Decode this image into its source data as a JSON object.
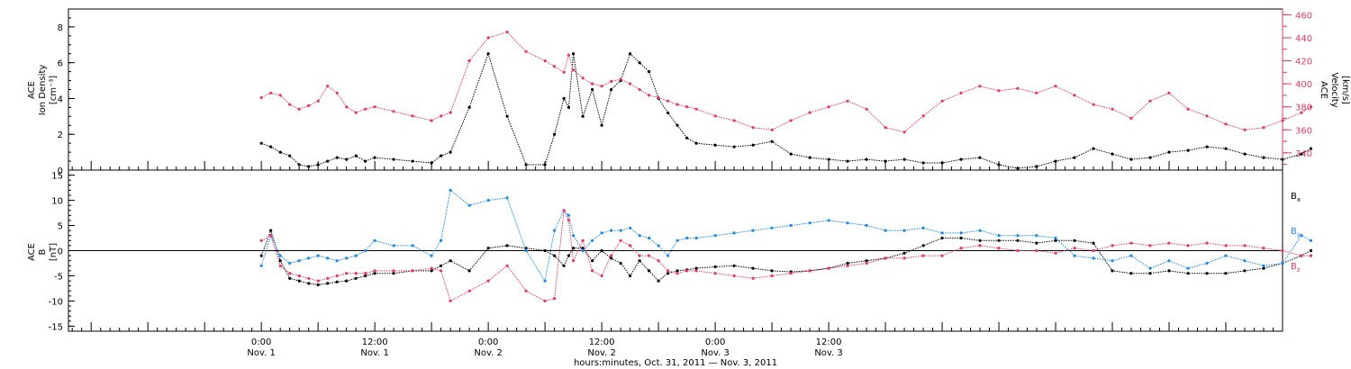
{
  "chart_data": [
    {
      "type": "scatter",
      "panel": "top",
      "ylabel_left": [
        "ACE",
        "Ion Density",
        "[cm⁻³]"
      ],
      "ylabel_right": [
        "ACE",
        "Velocity",
        "[km/s]"
      ],
      "ylim_left": [
        0,
        9
      ],
      "yticks_left": [
        0,
        2,
        4,
        6,
        8
      ],
      "ylim_right": [
        325,
        465
      ],
      "yticks_right": [
        340,
        360,
        380,
        400,
        420,
        440,
        460
      ],
      "colors": {
        "density": "#000000",
        "velocity": "#e03a66",
        "right_axis": "#e03a66"
      },
      "series": [
        {
          "axis": "left",
          "color": "#000000",
          "x": [
            0,
            1,
            2,
            3,
            4,
            5,
            6,
            7,
            8,
            9,
            10,
            11,
            12,
            14,
            16,
            18,
            19,
            20,
            22,
            24,
            26,
            28,
            30,
            31,
            32,
            32.5,
            33,
            34,
            35,
            36,
            37,
            38,
            39,
            40,
            41,
            42,
            43,
            44,
            45,
            46,
            48,
            50,
            52,
            54,
            56,
            58,
            60,
            62,
            64,
            66,
            68,
            70,
            72,
            74,
            76,
            78,
            80,
            82,
            84,
            86,
            88,
            90,
            92,
            94,
            96,
            98,
            100,
            102,
            104,
            106,
            108,
            110,
            111
          ],
          "y": [
            1.5,
            1.3,
            1.0,
            0.8,
            0.3,
            0.2,
            0.3,
            0.5,
            0.7,
            0.6,
            0.8,
            0.5,
            0.7,
            0.6,
            0.5,
            0.4,
            0.8,
            1.0,
            3.5,
            6.5,
            3.0,
            0.3,
            0.3,
            2.0,
            4.0,
            3.5,
            6.5,
            3.0,
            4.5,
            2.5,
            4.5,
            5.0,
            6.5,
            6.0,
            5.5,
            4.0,
            3.2,
            2.5,
            1.8,
            1.5,
            1.4,
            1.3,
            1.4,
            1.6,
            0.9,
            0.7,
            0.6,
            0.5,
            0.6,
            0.5,
            0.6,
            0.4,
            0.4,
            0.6,
            0.7,
            0.3,
            0.1,
            0.2,
            0.5,
            0.7,
            1.2,
            0.9,
            0.6,
            0.7,
            1.0,
            1.1,
            1.3,
            1.2,
            0.9,
            0.7,
            0.6,
            0.9,
            1.2
          ]
        },
        {
          "axis": "right",
          "color": "#e03a66",
          "x": [
            0,
            1,
            2,
            3,
            4,
            5,
            6,
            7,
            8,
            9,
            10,
            11,
            12,
            14,
            16,
            18,
            19,
            20,
            22,
            24,
            26,
            28,
            30,
            31,
            32,
            32.5,
            33,
            34,
            35,
            36,
            37,
            38,
            39,
            40,
            41,
            42,
            43,
            44,
            45,
            46,
            48,
            50,
            52,
            54,
            56,
            58,
            60,
            62,
            64,
            66,
            68,
            70,
            72,
            74,
            76,
            78,
            80,
            82,
            84,
            86,
            88,
            90,
            92,
            94,
            96,
            98,
            100,
            102,
            104,
            106,
            108,
            110,
            111
          ],
          "y": [
            388,
            392,
            390,
            382,
            378,
            381,
            385,
            398,
            392,
            380,
            375,
            378,
            380,
            376,
            372,
            368,
            372,
            375,
            420,
            440,
            445,
            428,
            420,
            415,
            410,
            425,
            412,
            405,
            400,
            398,
            402,
            404,
            400,
            395,
            390,
            388,
            385,
            382,
            380,
            378,
            372,
            368,
            362,
            360,
            368,
            375,
            380,
            385,
            378,
            362,
            358,
            372,
            385,
            392,
            398,
            394,
            396,
            392,
            398,
            390,
            382,
            378,
            370,
            385,
            392,
            378,
            372,
            365,
            360,
            362,
            368,
            375,
            380
          ]
        }
      ],
      "grid": false
    },
    {
      "type": "scatter",
      "panel": "bottom",
      "ylabel": [
        "ACE",
        "B",
        "[nT]"
      ],
      "ylim": [
        -16,
        16
      ],
      "yticks": [
        -15,
        -10,
        -5,
        0,
        5,
        10,
        15
      ],
      "legend_position": "right",
      "series": [
        {
          "name": "Bx",
          "label_main": "B",
          "label_sub": "x",
          "color": "#000000",
          "x": [
            0,
            1,
            2,
            3,
            4,
            5,
            6,
            7,
            8,
            9,
            10,
            11,
            12,
            14,
            16,
            18,
            19,
            20,
            22,
            24,
            26,
            28,
            30,
            31,
            32,
            32.5,
            33,
            34,
            35,
            36,
            37,
            38,
            39,
            40,
            41,
            42,
            43,
            44,
            45,
            46,
            48,
            50,
            52,
            54,
            56,
            58,
            60,
            62,
            64,
            66,
            68,
            70,
            72,
            74,
            76,
            78,
            80,
            82,
            84,
            86,
            88,
            90,
            92,
            94,
            96,
            98,
            100,
            102,
            104,
            106,
            108,
            110,
            111
          ],
          "y": [
            -1.0,
            4.0,
            -2.0,
            -5.5,
            -6.0,
            -6.5,
            -6.8,
            -6.5,
            -6.2,
            -6.0,
            -5.5,
            -5.0,
            -4.5,
            -4.5,
            -4.0,
            -4.0,
            -3.0,
            -2.0,
            -4.0,
            0.5,
            1.0,
            0.5,
            0.0,
            -1.0,
            -3.0,
            -1.0,
            0.5,
            0.5,
            -2.0,
            0.0,
            -1.5,
            -2.5,
            -5.0,
            -2.0,
            -4.0,
            -6.0,
            -4.5,
            -4.0,
            -3.8,
            -3.5,
            -3.2,
            -3.0,
            -3.5,
            -4.0,
            -4.2,
            -4.0,
            -3.5,
            -2.5,
            -2.0,
            -1.5,
            -0.5,
            1.0,
            2.5,
            2.5,
            2.0,
            2.0,
            2.0,
            1.5,
            2.0,
            2.0,
            1.5,
            -4.0,
            -4.5,
            -4.5,
            -4.0,
            -4.5,
            -4.5,
            -4.5,
            -4.0,
            -3.5,
            -2.5,
            -1.0,
            0.0
          ]
        },
        {
          "name": "By",
          "label_main": "B",
          "label_sub": "y",
          "color": "#1e88e5",
          "x": [
            0,
            1,
            2,
            3,
            4,
            5,
            6,
            7,
            8,
            9,
            10,
            11,
            12,
            14,
            16,
            18,
            19,
            20,
            22,
            24,
            26,
            28,
            30,
            31,
            32,
            32.5,
            33,
            34,
            35,
            36,
            37,
            38,
            39,
            40,
            41,
            42,
            43,
            44,
            45,
            46,
            48,
            50,
            52,
            54,
            56,
            58,
            60,
            62,
            64,
            66,
            68,
            70,
            72,
            74,
            76,
            78,
            80,
            82,
            84,
            86,
            88,
            90,
            92,
            94,
            96,
            98,
            100,
            102,
            104,
            106,
            108,
            110,
            111
          ],
          "y": [
            -3.0,
            3.0,
            -1.0,
            -2.5,
            -2.0,
            -1.5,
            -1.0,
            -1.5,
            -2.0,
            -1.5,
            -1.0,
            0.0,
            2.0,
            1.0,
            1.0,
            -1.0,
            2.0,
            12.0,
            9.0,
            10.0,
            10.5,
            0.0,
            -6.0,
            4.0,
            8.0,
            7.0,
            3.0,
            0.0,
            2.0,
            3.5,
            4.0,
            4.0,
            4.5,
            3.0,
            2.5,
            1.0,
            -1.0,
            2.0,
            2.5,
            2.5,
            3.0,
            3.5,
            4.0,
            4.5,
            5.0,
            5.5,
            6.0,
            5.5,
            5.0,
            4.0,
            4.0,
            4.5,
            3.5,
            3.5,
            4.0,
            3.0,
            3.0,
            3.0,
            2.5,
            -1.0,
            -1.5,
            -2.0,
            -1.0,
            -3.5,
            -2.0,
            -3.5,
            -2.5,
            -1.0,
            -2.0,
            -3.0,
            -2.5,
            3.0,
            2.0
          ]
        },
        {
          "name": "Bz",
          "label_main": "B",
          "label_sub": "z",
          "color": "#e03a66",
          "x": [
            0,
            1,
            2,
            3,
            4,
            5,
            6,
            7,
            8,
            9,
            10,
            11,
            12,
            14,
            16,
            18,
            19,
            20,
            22,
            24,
            26,
            28,
            30,
            31,
            32,
            32.5,
            33,
            34,
            35,
            36,
            37,
            38,
            39,
            40,
            41,
            42,
            43,
            44,
            45,
            46,
            48,
            50,
            52,
            54,
            56,
            58,
            60,
            62,
            64,
            66,
            68,
            70,
            72,
            74,
            76,
            78,
            80,
            82,
            84,
            86,
            88,
            90,
            92,
            94,
            96,
            98,
            100,
            102,
            104,
            106,
            108,
            110,
            111
          ],
          "y": [
            2.0,
            3.0,
            -3.0,
            -4.5,
            -5.0,
            -5.5,
            -6.0,
            -5.5,
            -5.0,
            -4.5,
            -4.5,
            -4.5,
            -4.0,
            -4.0,
            -4.0,
            -3.5,
            -4.0,
            -10.0,
            -8.0,
            -6.0,
            -3.0,
            -8.0,
            -10.0,
            -9.5,
            8.0,
            6.0,
            -2.0,
            2.0,
            -4.0,
            -5.0,
            -1.0,
            2.0,
            1.0,
            -1.0,
            -1.0,
            -2.0,
            -4.0,
            -4.5,
            -4.0,
            -4.0,
            -4.5,
            -5.0,
            -5.5,
            -5.0,
            -4.5,
            -4.0,
            -3.5,
            -3.0,
            -2.5,
            -1.5,
            -1.5,
            -1.0,
            -1.0,
            0.5,
            1.0,
            0.5,
            0.0,
            0.0,
            -0.5,
            0.5,
            0.0,
            1.0,
            1.5,
            1.0,
            1.5,
            1.0,
            1.5,
            1.0,
            1.0,
            0.5,
            0.0,
            -1.0,
            -1.0
          ]
        }
      ],
      "zero_line": true,
      "grid": false
    }
  ],
  "x_axis": {
    "unit": "hours",
    "range_hours": [
      -20.4,
      108.0
    ],
    "ticks": [
      {
        "hours": 0,
        "time": "0:00",
        "date": "Nov. 1"
      },
      {
        "hours": 12,
        "time": "12:00",
        "date": "Nov. 1"
      },
      {
        "hours": 24,
        "time": "0:00",
        "date": "Nov. 2"
      },
      {
        "hours": 36,
        "time": "12:00",
        "date": "Nov. 2"
      },
      {
        "hours": 48,
        "time": "0:00",
        "date": "Nov. 3"
      },
      {
        "hours": 60,
        "time": "12:00",
        "date": "Nov. 3"
      }
    ],
    "minor_tick_hours": 1,
    "label": "hours:minutes, Oct. 31, 2011 — Nov.  3, 2011"
  }
}
